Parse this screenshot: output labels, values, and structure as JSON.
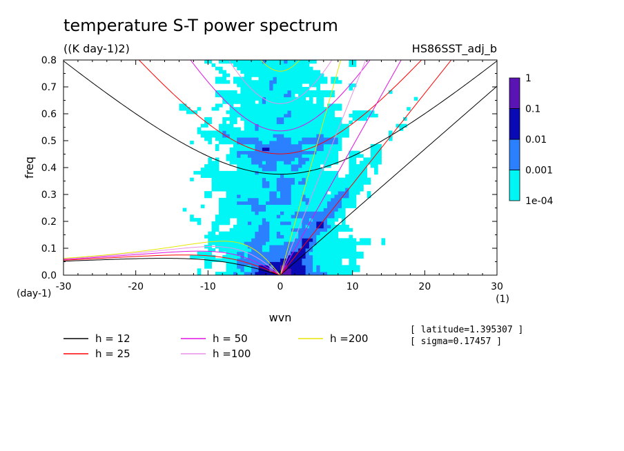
{
  "chart_data": {
    "type": "heatmap",
    "title": "temperature S-T power spectrum",
    "subtitle": "((K day-1)2)",
    "case_label": "HS86SST_adj_b",
    "xlabel": "wvn",
    "ylabel": "freq",
    "x_unit": "(1)",
    "y_unit": "(day-1)",
    "xlim": [
      -30,
      30
    ],
    "ylim": [
      0,
      0.8
    ],
    "x_ticks": [
      -30,
      -20,
      -10,
      0,
      10,
      20,
      30
    ],
    "x_tick_labels": [
      "-30",
      "-20",
      "-10",
      "0",
      "10",
      "20",
      "30"
    ],
    "y_ticks": [
      0,
      0.1,
      0.2,
      0.3,
      0.4,
      0.5,
      0.6,
      0.7,
      0.8
    ],
    "y_tick_labels": [
      "0.0",
      "0.1",
      "0.2",
      "0.3",
      "0.4",
      "0.5",
      "0.6",
      "0.7",
      "0.8"
    ],
    "colorbar": {
      "scale": "log",
      "levels": [
        0.0001,
        0.001,
        0.01,
        0.1,
        1
      ],
      "labels": [
        "1e-04",
        "0.001",
        "0.01",
        "0.1",
        "1"
      ],
      "colors": [
        "#00f5f5",
        "#2a80ff",
        "#0a0ab4",
        "#5a14b4"
      ]
    },
    "dispersion_curves": [
      {
        "name": "h = 12",
        "equivalent_depth": 12,
        "color": "#000000"
      },
      {
        "name": "h = 25",
        "equivalent_depth": 25,
        "color": "#ff0000"
      },
      {
        "name": "h = 50",
        "equivalent_depth": 50,
        "color": "#e010e0"
      },
      {
        "name": "h =100",
        "equivalent_depth": 100,
        "color": "#e890e8"
      },
      {
        "name": "h =200",
        "equivalent_depth": 200,
        "color": "#e6e600"
      }
    ],
    "annotations": [
      "[ latitude=1.395307 ]",
      "[ sigma=0.17457 ]"
    ],
    "grid": false,
    "legend_position": "bottom"
  }
}
